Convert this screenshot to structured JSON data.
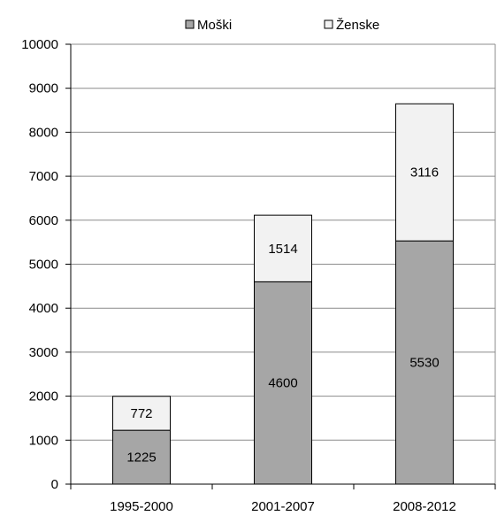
{
  "chart_data": {
    "type": "bar",
    "stacked": true,
    "categories": [
      "1995-2000",
      "2001-2007",
      "2008-2012"
    ],
    "series": [
      {
        "name": "Moški",
        "values": [
          1225,
          4600,
          5530
        ],
        "color": "#a6a6a6"
      },
      {
        "name": "Ženske",
        "values": [
          772,
          1514,
          3116
        ],
        "color": "#f2f2f2"
      }
    ],
    "ylim": [
      0,
      10000
    ],
    "yticks": [
      0,
      1000,
      2000,
      3000,
      4000,
      5000,
      6000,
      7000,
      8000,
      9000,
      10000
    ],
    "grid": true,
    "legend_position": "top",
    "xlabel": "",
    "ylabel": "",
    "title": ""
  }
}
